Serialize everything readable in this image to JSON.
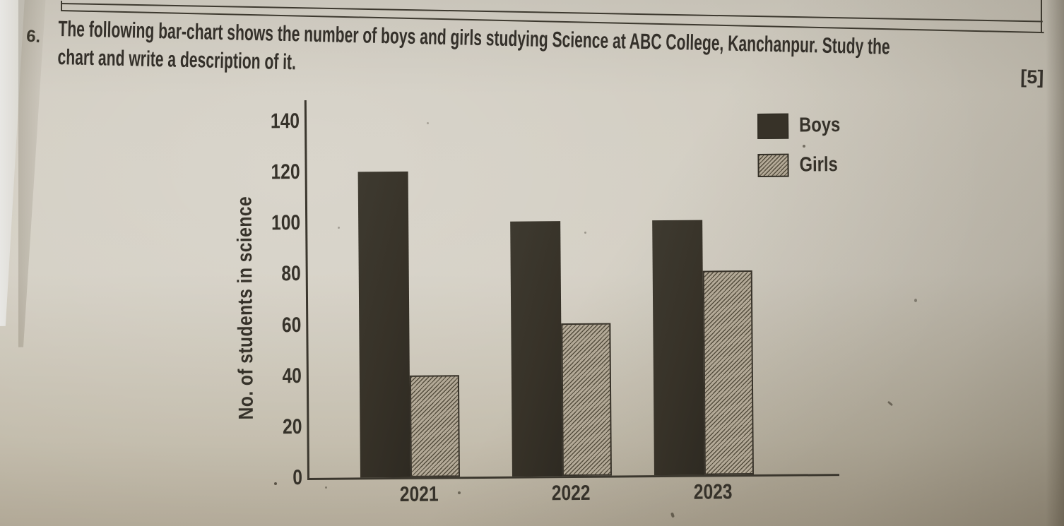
{
  "question": {
    "number": "6.",
    "lines": [
      "The following bar-chart shows the number of boys and girls studying Science at ABC College, Kanchanpur. Study the",
      "chart and write a description of it."
    ],
    "marks": "[5]"
  },
  "chart_data": {
    "type": "bar",
    "title": "",
    "categories": [
      "2021",
      "2022",
      "2023"
    ],
    "series": [
      {
        "name": "Boys",
        "values": [
          120,
          100,
          100
        ],
        "color": "#373228",
        "pattern": "solid"
      },
      {
        "name": "Girls",
        "values": [
          40,
          60,
          80
        ],
        "color": "#b3a997",
        "pattern": "diagonal-hatch",
        "hatch_color": "#544d3d"
      }
    ],
    "xlabel": "",
    "ylabel": "No. of students in science",
    "ylim": [
      0,
      140
    ],
    "yticks": [
      0,
      20,
      40,
      60,
      80,
      100,
      120,
      140
    ],
    "grid": false,
    "legend_position": "top-right"
  },
  "colors": {
    "ink": "#36322a",
    "paper_light": "#d1ccc0",
    "paper_dark": "#b0a795"
  }
}
